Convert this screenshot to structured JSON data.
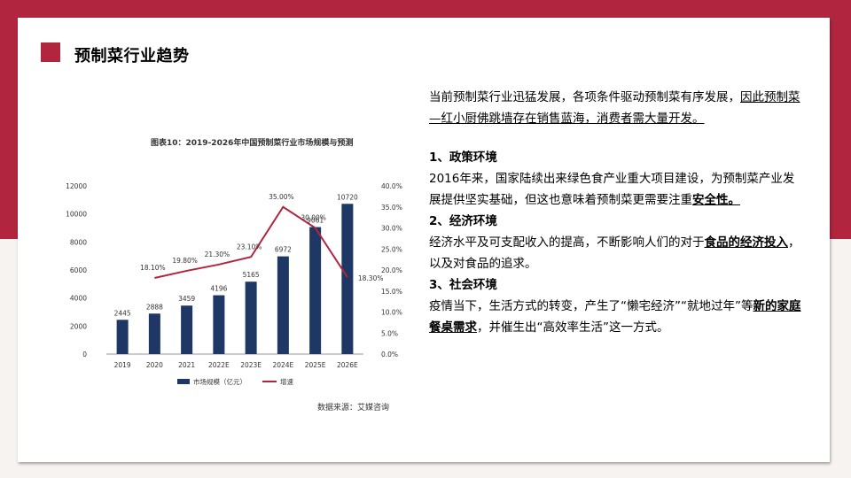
{
  "slide": {
    "title": "预制菜行业趋势",
    "colors": {
      "accent": "#b2253f",
      "bar": "#1f3764",
      "line": "#b2253f"
    }
  },
  "chart": {
    "heading": "图表10：2019-2026年中国预制菜行业市场规模与预测",
    "source": "数据来源：艾媒咨询"
  },
  "chart_data": {
    "type": "bar",
    "title": "图表10：2019-2026年中国预制菜行业市场规模与预测",
    "categories": [
      "2019",
      "2020",
      "2021",
      "2022E",
      "2023E",
      "2024E",
      "2025E",
      "2026E"
    ],
    "series": [
      {
        "name": "市场规模（亿元）",
        "type": "bar",
        "axis": "left",
        "values": [
          2445,
          2888,
          3459,
          4196,
          5165,
          6972,
          9061,
          10720
        ],
        "labels": [
          "2445",
          "2888",
          "3459",
          "4196",
          "5165",
          "6972",
          "9061",
          "10720"
        ]
      },
      {
        "name": "增速",
        "type": "line",
        "axis": "right",
        "values": [
          null,
          18.1,
          19.8,
          21.3,
          23.1,
          35.0,
          30.0,
          18.3
        ],
        "labels": [
          "",
          "18.10%",
          "19.80%",
          "21.30%",
          "23.10%",
          "35.00%",
          "30.00%",
          "18.30%"
        ]
      }
    ],
    "ylim_left": [
      0,
      12000
    ],
    "ylim_right": [
      0,
      40
    ],
    "yticks_left": [
      "0",
      "2000",
      "4000",
      "6000",
      "8000",
      "10000",
      "12000"
    ],
    "yticks_right": [
      "0.0%",
      "5.0%",
      "10.0%",
      "15.0%",
      "20.0%",
      "25.0%",
      "30.0%",
      "35.0%",
      "40.0%"
    ],
    "grid": false,
    "legend_position": "bottom"
  },
  "text": {
    "intro_plain": "当前预制菜行业迅猛发展，各项条件驱动预制菜有序发展，",
    "intro_underlined": "因此预制菜—红小厨佛跳墙存在销售蓝海，消费者需大量开发。",
    "sec1_title": "1、政策环境",
    "sec1_body": "2016年来，国家陆续出来绿色食产业重大项目建设，为预制菜产业发展提供坚实基础，但这也意味着预制菜更需要注重",
    "sec1_emph": "安全性。",
    "sec2_title": "2、经济环境",
    "sec2_body": "经济水平及可支配收入的提高，不断影响人们的对于",
    "sec2_emph": "食品的经济投入",
    "sec2_tail": "，以及对食品的追求。",
    "sec3_title": "3、社会环境",
    "sec3_body": "疫情当下，生活方式的转变，产生了“懒宅经济”“就地过年”等",
    "sec3_emph": "新的家庭餐桌需求",
    "sec3_tail": "，并催生出“高效率生活”这一方式。"
  }
}
